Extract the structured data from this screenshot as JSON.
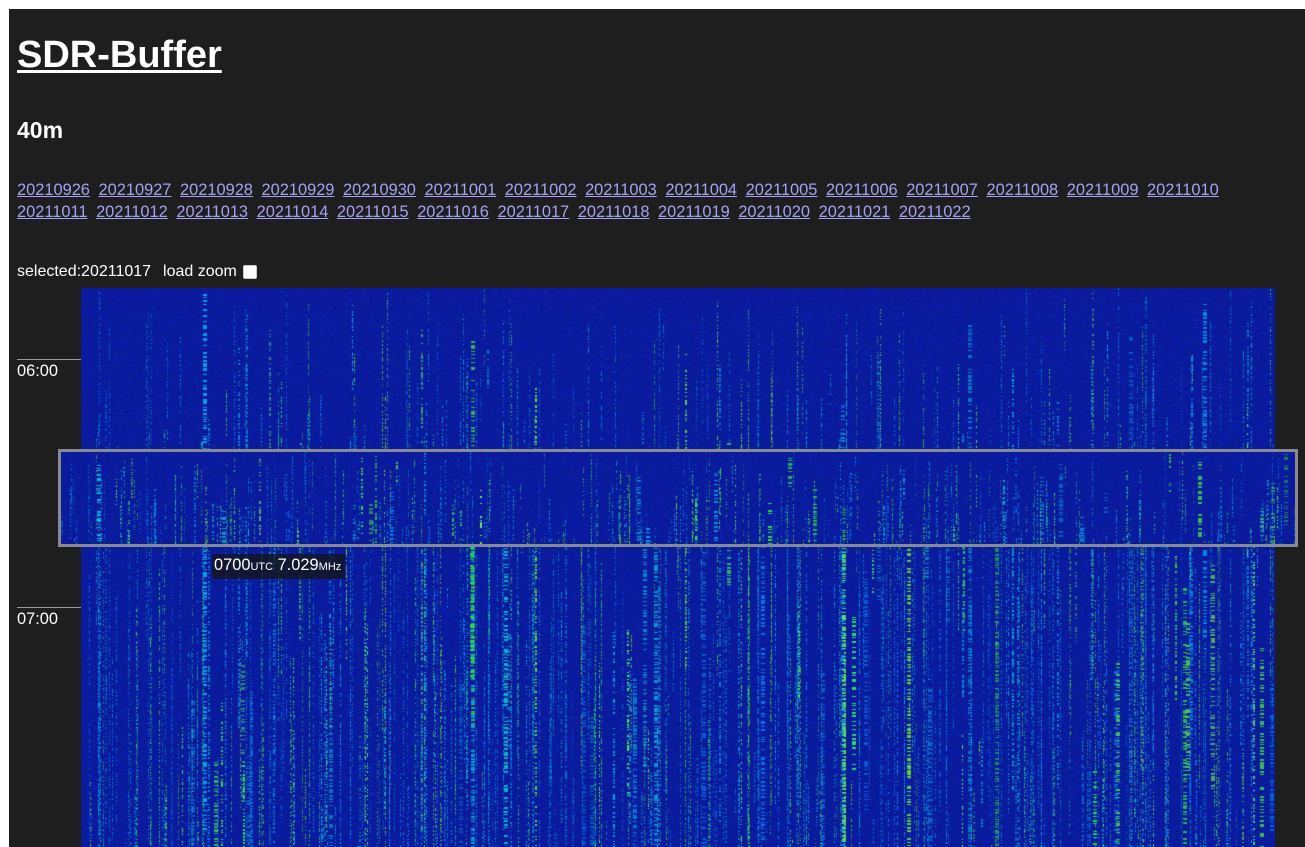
{
  "app_title": "SDR-Buffer",
  "band": "40m",
  "dates": [
    "20210926",
    "20210927",
    "20210928",
    "20210929",
    "20210930",
    "20211001",
    "20211002",
    "20211003",
    "20211004",
    "20211005",
    "20211006",
    "20211007",
    "20211008",
    "20211009",
    "20211010",
    "20211011",
    "20211012",
    "20211013",
    "20211014",
    "20211015",
    "20211016",
    "20211017",
    "20211018",
    "20211019",
    "20211020",
    "20211021",
    "20211022"
  ],
  "controls": {
    "selected_text": "selected:20211017",
    "load_zoom_label": "load zoom",
    "load_zoom_checked": false
  },
  "time_axis": {
    "label_0600": "06:00",
    "label_0700": "07:00"
  },
  "cursor_readout": {
    "time": "0700",
    "time_unit": "UTC",
    "freq": "7.029",
    "freq_unit": "MHz"
  },
  "colors": {
    "page_bg": "#1e1e1e",
    "link": "#a3a3f5",
    "waterfall_base": "#0a1fa0",
    "signal_green": "#33ff33",
    "zoom_border": "#8a8a8a"
  }
}
